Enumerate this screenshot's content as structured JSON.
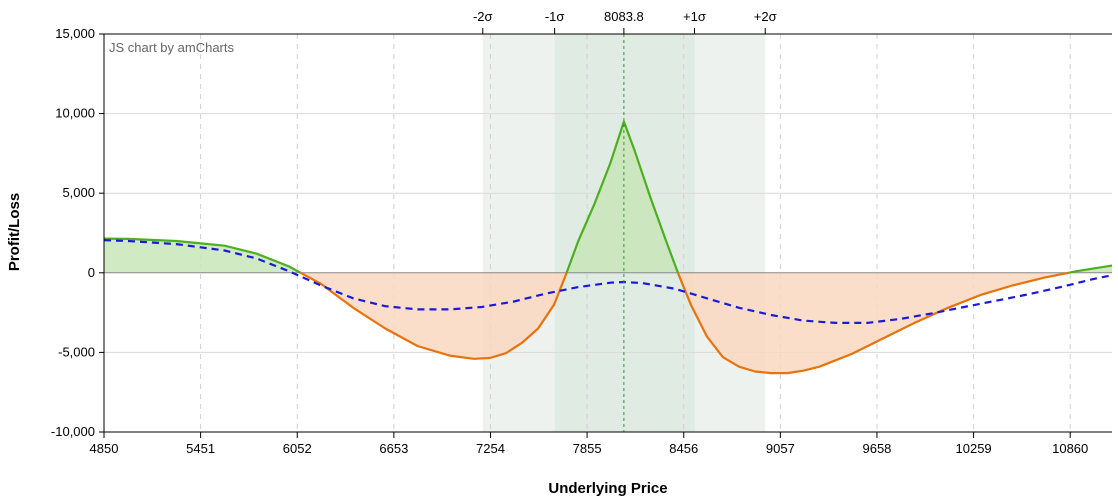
{
  "chart_data": {
    "type": "line",
    "credit": "JS chart by amCharts",
    "xlabel": "Underlying Price",
    "ylabel": "Profit/Loss",
    "xlim": [
      4850,
      11120
    ],
    "ylim": [
      -10000,
      15000
    ],
    "x_ticks": [
      "4850",
      "5451",
      "6052",
      "6653",
      "7254",
      "7855",
      "8456",
      "9057",
      "9658",
      "10259",
      "10860"
    ],
    "y_ticks": [
      "15,000",
      "10,000",
      "5,000",
      "0",
      "-5,000",
      "-10,000"
    ],
    "y_tick_values": [
      15000,
      10000,
      5000,
      0,
      -5000,
      -10000
    ],
    "x_grid_values": [
      5451,
      6052,
      6653,
      7254,
      7855,
      8456,
      9057,
      9658,
      10259,
      10860
    ],
    "current_price": "8083.8",
    "current_price_value": 8083.8,
    "sigma_labels": [
      {
        "label": "-2σ",
        "value": 7206
      },
      {
        "label": "-1σ",
        "value": 7653
      },
      {
        "label": "8083.8",
        "value": 8083.8
      },
      {
        "label": "+1σ",
        "value": 8523
      },
      {
        "label": "+2σ",
        "value": 8963
      }
    ],
    "bands": [
      {
        "from": 7206,
        "to": 8963,
        "color": "#eef2ef"
      },
      {
        "from": 7653,
        "to": 8523,
        "color": "#e0ebe4"
      }
    ],
    "colors": {
      "profit_fill": "#c8e6b8",
      "loss_fill": "#fad8bf",
      "expiration_up": "#4caf20",
      "expiration_down": "#e8720c",
      "today_line": "#1a1adc",
      "current_price_line": "#2e9a2e"
    },
    "series": [
      {
        "style": "solid",
        "x": [
          4850,
          5000,
          5300,
          5600,
          5800,
          6000,
          6200,
          6400,
          6600,
          6800,
          7000,
          7150,
          7250,
          7350,
          7450,
          7550,
          7650,
          7720,
          7800,
          7900,
          8000,
          8083.8,
          8150,
          8250,
          8350,
          8420,
          8500,
          8600,
          8700,
          8800,
          8900,
          9000,
          9100,
          9200,
          9300,
          9500,
          9700,
          9900,
          10100,
          10300,
          10500,
          10700,
          10900,
          11120
        ],
        "y": [
          2150,
          2130,
          2000,
          1700,
          1200,
          400,
          -700,
          -2200,
          -3500,
          -4600,
          -5200,
          -5400,
          -5350,
          -5050,
          -4400,
          -3500,
          -2000,
          -200,
          2000,
          4300,
          6900,
          9500,
          7700,
          4700,
          1900,
          0,
          -2000,
          -4000,
          -5300,
          -5900,
          -6200,
          -6300,
          -6300,
          -6150,
          -5900,
          -5100,
          -4100,
          -3100,
          -2200,
          -1400,
          -800,
          -300,
          100,
          450
        ]
      },
      {
        "style": "dashed",
        "x": [
          4850,
          5000,
          5300,
          5600,
          5800,
          6000,
          6200,
          6400,
          6600,
          6800,
          7000,
          7200,
          7400,
          7600,
          7800,
          8000,
          8083.8,
          8200,
          8400,
          8600,
          8800,
          9000,
          9200,
          9400,
          9600,
          9800,
          10000,
          10200,
          10400,
          10600,
          10800,
          11000,
          11120
        ],
        "y": [
          2050,
          2000,
          1800,
          1400,
          900,
          100,
          -800,
          -1600,
          -2100,
          -2300,
          -2300,
          -2150,
          -1800,
          -1300,
          -900,
          -620,
          -580,
          -650,
          -1000,
          -1600,
          -2200,
          -2650,
          -3000,
          -3150,
          -3150,
          -2900,
          -2550,
          -2150,
          -1750,
          -1350,
          -900,
          -400,
          -150
        ]
      }
    ]
  }
}
